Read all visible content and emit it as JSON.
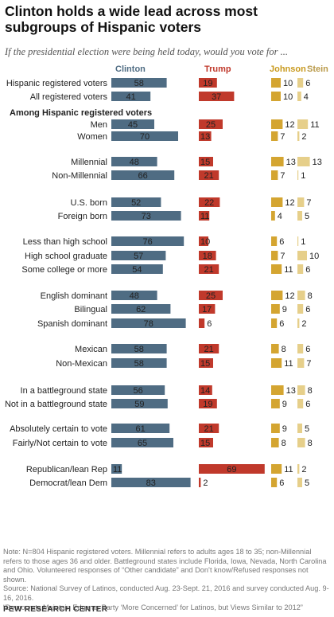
{
  "title": "Clinton holds a wide lead across most subgroups of Hispanic voters",
  "subtitle": "If the presidential election were being held today, would you vote for ...",
  "colors": {
    "clinton": "#4f6c83",
    "trump": "#c0392b",
    "johnson": "#d4a531",
    "stein": "#e6cf8a",
    "clinton_header": "#4f6c83",
    "trump_header": "#c0392b",
    "johnson_header": "#c99a1e",
    "stein_header": "#b99a4a"
  },
  "chart_data": {
    "type": "bar",
    "series": [
      {
        "name": "Clinton",
        "values": [
          58,
          41,
          45,
          70,
          48,
          66,
          52,
          73,
          76,
          57,
          54,
          48,
          62,
          78,
          58,
          58,
          56,
          59,
          61,
          65,
          11,
          83
        ]
      },
      {
        "name": "Trump",
        "values": [
          19,
          37,
          25,
          13,
          15,
          21,
          22,
          11,
          10,
          18,
          21,
          25,
          17,
          6,
          21,
          15,
          14,
          19,
          21,
          15,
          69,
          2
        ]
      },
      {
        "name": "Johnson",
        "values": [
          10,
          10,
          12,
          7,
          13,
          7,
          12,
          4,
          6,
          7,
          11,
          12,
          9,
          6,
          8,
          11,
          13,
          9,
          9,
          8,
          11,
          6
        ]
      },
      {
        "name": "Stein",
        "values": [
          6,
          4,
          11,
          2,
          13,
          1,
          7,
          5,
          1,
          10,
          6,
          8,
          6,
          2,
          6,
          7,
          8,
          6,
          5,
          8,
          2,
          5
        ]
      }
    ],
    "categories": [
      "Hispanic registered voters",
      "All registered voters",
      "Men",
      "Women",
      "Millennial",
      "Non-Millennial",
      "U.S. born",
      "Foreign born",
      "Less than high school",
      "High school graduate",
      "Some college or more",
      "English dominant",
      "Bilingual",
      "Spanish dominant",
      "Mexican",
      "Non-Mexican",
      "In a battleground state",
      "Not in a battleground state",
      "Absolutely certain to vote",
      "Fairly/Not certain to vote",
      "Republican/lean Rep",
      "Democrat/lean Dem"
    ],
    "section_label": "Among Hispanic registered voters"
  },
  "notes": [
    "Note: N=804 Hispanic registered voters. Millennial refers to adults ages 18 to 35; non-Millennial refers to those ages 36 and older. Battleground states include Florida, Iowa, Nevada, North Carolina and Ohio. Volunteered responses of “Other candidate” and Don’t know/Refused responses not shown.",
    "Source: National Survey of Latinos, conducted Aug. 23-Sept. 21, 2016 and survey conducted Aug. 9-16, 2016.",
    "“Democrats Maintain Edge as Party ‘More Concerned’ for Latinos, but Views Similar to 2012”"
  ],
  "brand": "PEW RESEARCH CENTER"
}
